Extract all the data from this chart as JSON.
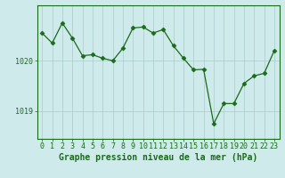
{
  "x": [
    0,
    1,
    2,
    3,
    4,
    5,
    6,
    7,
    8,
    9,
    10,
    11,
    12,
    13,
    14,
    15,
    16,
    17,
    18,
    19,
    20,
    21,
    22,
    23
  ],
  "y": [
    1020.55,
    1020.35,
    1020.75,
    1020.45,
    1020.1,
    1020.12,
    1020.05,
    1020.0,
    1020.25,
    1020.65,
    1020.67,
    1020.55,
    1020.62,
    1020.3,
    1020.05,
    1019.82,
    1019.83,
    1018.75,
    1019.15,
    1019.15,
    1019.55,
    1019.7,
    1019.75,
    1020.2
  ],
  "line_color": "#1a6b1a",
  "marker": "D",
  "marker_size": 2.5,
  "background_color": "#ceeaea",
  "grid_color": "#aacccc",
  "xlabel": "Graphe pression niveau de la mer (hPa)",
  "xlabel_fontsize": 7,
  "tick_color": "#1a6b1a",
  "tick_fontsize": 6,
  "ytick_labels": [
    "1019",
    "1020"
  ],
  "ytick_values": [
    1019.0,
    1020.0
  ],
  "ylim": [
    1018.45,
    1021.1
  ],
  "xlim": [
    -0.5,
    23.5
  ]
}
